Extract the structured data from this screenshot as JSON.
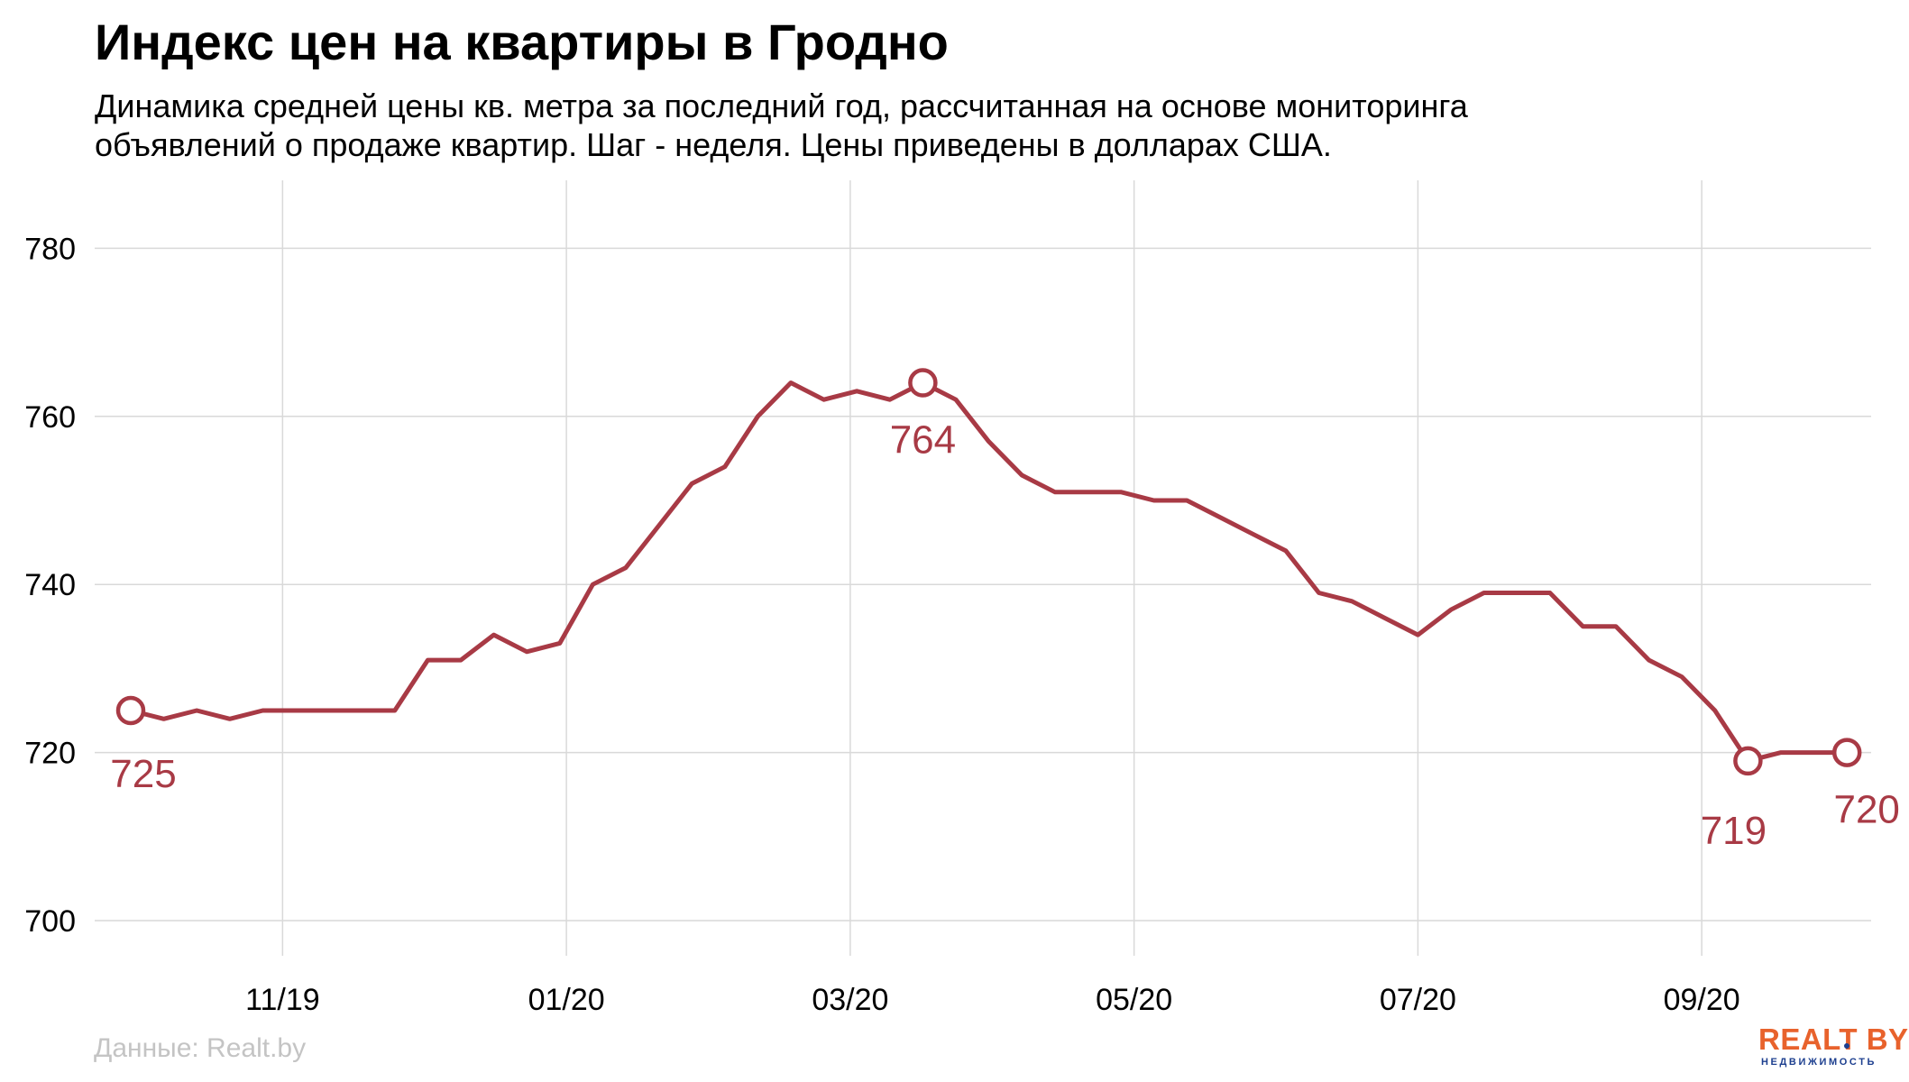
{
  "title": "Индекс цен на квартиры в Гродно",
  "subtitle_lines": [
    "Динамика средней цены кв. метра за последний год, рассчитанная на основе мониторинга",
    "объявлений о продаже квартир. Шаг - неделя. Цены приведены в долларах США."
  ],
  "source": "Данные: Realt.by",
  "logo": {
    "main": "REALT BY",
    "sub": "НЕДВИЖИМОСТЬ"
  },
  "colors": {
    "line": "#a83a45",
    "grid": "#d9d9d9",
    "logo_orange": "#e8622c",
    "logo_blue": "#1d3f8f"
  },
  "chart_data": {
    "type": "line",
    "title": "Индекс цен на квартиры в Гродно",
    "xlabel": "",
    "ylabel": "",
    "x_ticks": [
      "11/19",
      "01/20",
      "03/20",
      "05/20",
      "07/20",
      "09/20"
    ],
    "y_ticks": [
      700,
      720,
      740,
      760,
      780
    ],
    "ylim": [
      695,
      788
    ],
    "grid": true,
    "series": [
      {
        "values": [
          725,
          724,
          725,
          724,
          725,
          725,
          725,
          725,
          725,
          731,
          731,
          734,
          732,
          733,
          740,
          742,
          747,
          752,
          754,
          760,
          764,
          762,
          763,
          762,
          764,
          762,
          757,
          753,
          751,
          751,
          751,
          750,
          750,
          748,
          746,
          744,
          739,
          738,
          736,
          734,
          737,
          739,
          739,
          739,
          735,
          735,
          731,
          729,
          725,
          719,
          720,
          720,
          720
        ]
      }
    ],
    "annotations": [
      {
        "index": 0,
        "label": "725"
      },
      {
        "index": 24,
        "label": "764"
      },
      {
        "index": 49,
        "label": "719"
      },
      {
        "index": 52,
        "label": "720"
      }
    ]
  }
}
